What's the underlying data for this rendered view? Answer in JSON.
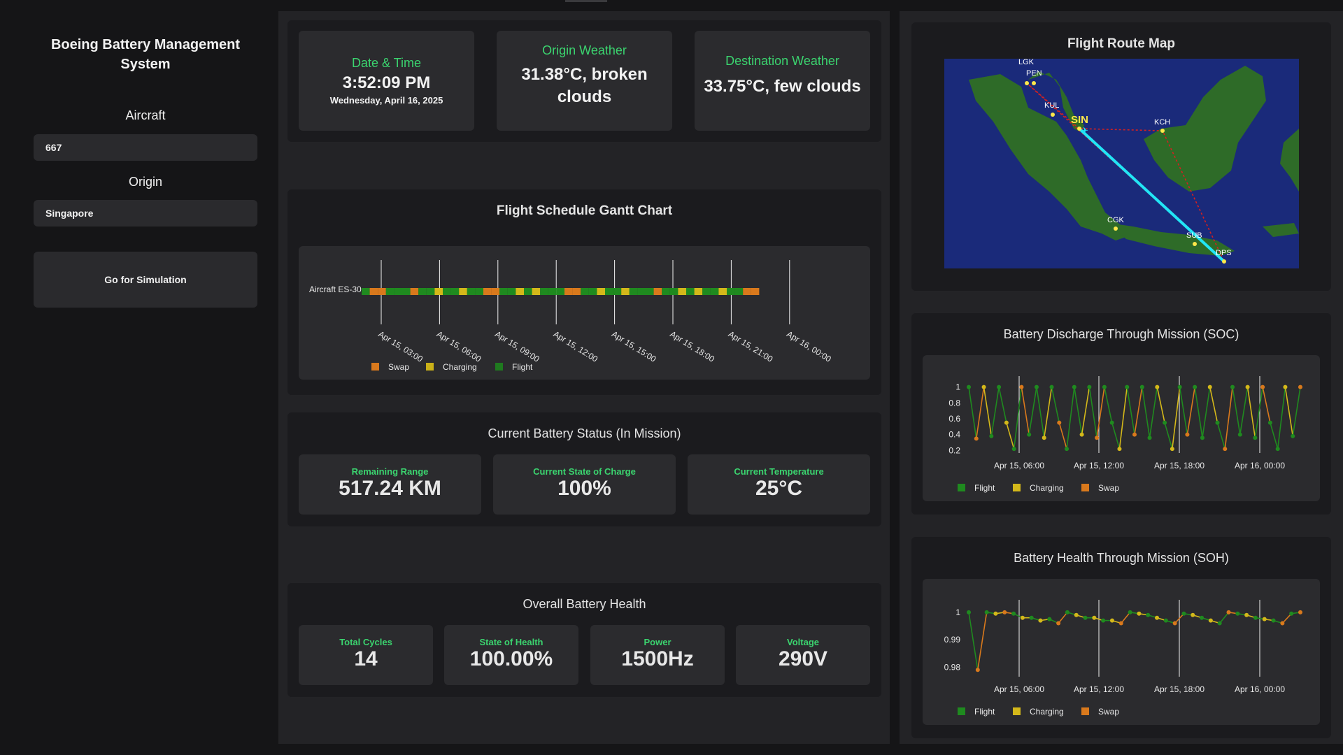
{
  "sidebar": {
    "title": "Boeing Battery Management System",
    "aircraft_label": "Aircraft",
    "aircraft_value": "667",
    "origin_label": "Origin",
    "origin_value": "Singapore",
    "simulate_button": "Go for Simulation"
  },
  "header": {
    "datetime_label": "Date & Time",
    "time": "3:52:09 PM",
    "date": "Wednesday, April 16, 2025",
    "origin_weather_label": "Origin Weather",
    "origin_weather": "31.38°C, broken clouds",
    "dest_weather_label": "Destination Weather",
    "dest_weather": "33.75°C, few clouds"
  },
  "gantt": {
    "title": "Flight Schedule Gantt Chart",
    "row_label": "Aircraft ES-30",
    "ticks": [
      "Apr 15, 03:00",
      "Apr 15, 06:00",
      "Apr 15, 09:00",
      "Apr 15, 12:00",
      "Apr 15, 15:00",
      "Apr 15, 18:00",
      "Apr 15, 21:00",
      "Apr 16, 00:00"
    ],
    "legend": [
      "Swap",
      "Charging",
      "Flight"
    ]
  },
  "battery_status": {
    "title": "Current Battery Status (In Mission)",
    "range_label": "Remaining Range",
    "range_value": "517.24 KM",
    "soc_label": "Current State of Charge",
    "soc_value": "100%",
    "temp_label": "Current Temperature",
    "temp_value": "25°C"
  },
  "health": {
    "title": "Overall Battery Health",
    "cycles_label": "Total Cycles",
    "cycles_value": "14",
    "soh_label": "State of Health",
    "soh_value": "100.00%",
    "power_label": "Power",
    "power_value": "1500Hz",
    "voltage_label": "Voltage",
    "voltage_value": "290V"
  },
  "map": {
    "title": "Flight Route Map",
    "airports": [
      "LGK",
      "PEN",
      "KUL",
      "SIN",
      "KCH",
      "CGK",
      "SUB",
      "DPS"
    ],
    "colors": {
      "sea": "#1a2a7a",
      "land": "#2e6b28",
      "route_active": "#22e5f5",
      "route_planned": "#d42020"
    }
  },
  "soc_chart": {
    "title": "Battery Discharge Through Mission (SOC)",
    "yticks": [
      "1",
      "0.8",
      "0.6",
      "0.4",
      "0.2"
    ],
    "xticks": [
      "Apr 15, 06:00",
      "Apr 15, 12:00",
      "Apr 15, 18:00",
      "Apr 16, 00:00"
    ],
    "legend": [
      "Flight",
      "Charging",
      "Swap"
    ]
  },
  "soh_chart": {
    "title": "Battery Health Through Mission (SOH)",
    "yticks": [
      "1",
      "0.99",
      "0.98"
    ],
    "xticks": [
      "Apr 15, 06:00",
      "Apr 15, 12:00",
      "Apr 15, 18:00",
      "Apr 16, 00:00"
    ],
    "legend": [
      "Flight",
      "Charging",
      "Swap"
    ]
  },
  "chart_data": [
    {
      "type": "bar",
      "title": "Flight Schedule Gantt Chart",
      "categories": [
        "Aircraft ES-30"
      ],
      "series": [
        {
          "name": "Swap",
          "color": "#d9791c"
        },
        {
          "name": "Charging",
          "color": "#c9b018"
        },
        {
          "name": "Flight",
          "color": "#1f7a1f"
        }
      ]
    },
    {
      "type": "line",
      "title": "Battery Discharge Through Mission (SOC)",
      "ylim": [
        0.15,
        1.05
      ],
      "series": [
        {
          "name": "Flight",
          "color": "#1f8a1f"
        },
        {
          "name": "Charging",
          "color": "#d4b81a"
        },
        {
          "name": "Swap",
          "color": "#d9791c"
        }
      ]
    },
    {
      "type": "line",
      "title": "Battery Health Through Mission (SOH)",
      "ylim": [
        0.976,
        1.002
      ],
      "series": [
        {
          "name": "Flight",
          "color": "#1f8a1f"
        },
        {
          "name": "Charging",
          "color": "#d4b81a"
        },
        {
          "name": "Swap",
          "color": "#d9791c"
        }
      ]
    }
  ]
}
